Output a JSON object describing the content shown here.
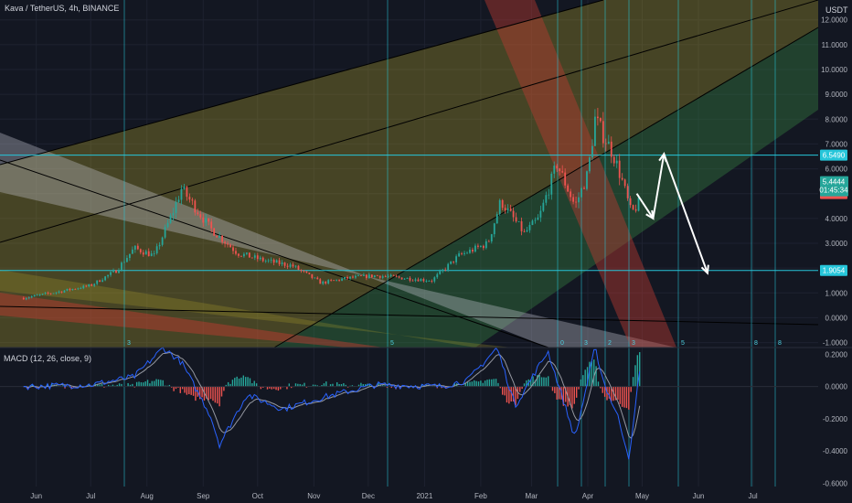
{
  "header": {
    "symbol_title": "Kava / TetherUS, 4h, BINANCE",
    "currency": "USDT",
    "macd_title": "MACD (12, 26, close, 9)"
  },
  "colors": {
    "background": "#131722",
    "candle_up": "#26a69a",
    "candle_down": "#ef5350",
    "macd_line": "#2962ff",
    "signal_line": "#9598a1",
    "hist_up": "#26a69a",
    "hist_down": "#ef5350",
    "level_line": "#26c6da",
    "channel_yellow": "#b5a42a",
    "channel_green": "#3d8f46",
    "channel_grey": "#c9c9d4",
    "channel_red": "#b73a30",
    "channel_maroon": "#8a2c3a",
    "arrow": "#ffffff"
  },
  "chart_data": [
    {
      "type": "candlestick",
      "title": "Kava / TetherUS, 4h, BINANCE",
      "y_axis_label": "USDT",
      "ylim": [
        -1.2,
        12.8
      ],
      "y_ticks": [
        "12.0000",
        "11.0000",
        "10.0000",
        "9.0000",
        "8.0000",
        "7.0000",
        "6.0000",
        "5.0000",
        "4.0000",
        "3.0000",
        "2.0000",
        "1.0000",
        "0.0000",
        "-1.0000"
      ],
      "x_ticks": [
        "Jun",
        "Jul",
        "Aug",
        "Sep",
        "Oct",
        "Nov",
        "Dec",
        "2021",
        "Feb",
        "Mar",
        "Apr",
        "May",
        "Jun",
        "Jul"
      ],
      "price_path": {
        "dates": [
          "2020-05-25",
          "2020-06-10",
          "2020-07-01",
          "2020-07-15",
          "2020-07-25",
          "2020-08-05",
          "2020-08-15",
          "2020-08-20",
          "2020-09-05",
          "2020-09-20",
          "2020-10-05",
          "2020-10-20",
          "2020-11-05",
          "2020-11-20",
          "2020-12-05",
          "2020-12-20",
          "2021-01-05",
          "2021-01-20",
          "2021-02-05",
          "2021-02-12",
          "2021-02-25",
          "2021-03-05",
          "2021-03-15",
          "2021-03-25",
          "2021-04-01",
          "2021-04-05",
          "2021-04-15",
          "2021-04-20",
          "2021-04-25",
          "2021-04-30"
        ],
        "values": [
          0.8,
          1.0,
          1.3,
          1.9,
          2.8,
          2.5,
          4.2,
          5.2,
          3.6,
          2.6,
          2.3,
          2.1,
          1.4,
          1.6,
          1.7,
          1.6,
          1.5,
          2.5,
          3.0,
          4.7,
          3.4,
          4.0,
          6.2,
          4.5,
          5.8,
          8.0,
          6.6,
          5.5,
          4.2,
          4.7
        ]
      },
      "last_price": 5.4444,
      "last_price_label": "5.4444",
      "countdown_label": "01:45:34",
      "level_tags": [
        {
          "value": 6.549,
          "label": "6.5490",
          "kind": "level"
        },
        {
          "value": 5.0021,
          "label": "5.0021",
          "kind": "low"
        },
        {
          "value": 1.9054,
          "label": "1.9054",
          "kind": "level"
        }
      ],
      "horizontal_levels": [
        6.549,
        1.9054
      ],
      "projection_arrows": [
        {
          "points": [
            [
              "2021-04-28",
              5.0
            ],
            [
              "2021-05-07",
              4.0
            ]
          ]
        },
        {
          "points": [
            [
              "2021-05-07",
              4.0
            ],
            [
              "2021-05-13",
              6.6
            ]
          ]
        },
        {
          "points": [
            [
              "2021-05-13",
              6.6
            ],
            [
              "2021-06-06",
              1.8
            ]
          ]
        }
      ],
      "vertical_line_numbers": [
        "3",
        "5",
        "0",
        "3",
        "2",
        "3",
        "5",
        "8",
        "8"
      ]
    },
    {
      "type": "line",
      "title": "MACD (12, 26, close, 9)",
      "ylim": [
        -0.62,
        0.23
      ],
      "y_ticks": [
        "0.2000",
        "0.0000",
        "-0.2000",
        "-0.4000",
        "-0.6000"
      ],
      "macd_path": {
        "dates": [
          "2020-05-25",
          "2020-07-01",
          "2020-07-25",
          "2020-08-10",
          "2020-08-20",
          "2020-09-05",
          "2020-09-10",
          "2020-09-25",
          "2020-10-15",
          "2020-11-05",
          "2020-12-05",
          "2021-01-10",
          "2021-01-25",
          "2021-02-10",
          "2021-02-20",
          "2021-03-10",
          "2021-03-25",
          "2021-04-05",
          "2021-04-10",
          "2021-04-18",
          "2021-04-24",
          "2021-04-30"
        ],
        "values": [
          0.0,
          0.01,
          0.06,
          0.24,
          0.15,
          -0.18,
          -0.36,
          -0.05,
          -0.14,
          -0.07,
          0.01,
          0.0,
          0.04,
          0.24,
          -0.12,
          0.22,
          -0.32,
          0.24,
          0.02,
          -0.2,
          -0.45,
          0.15
        ]
      }
    }
  ]
}
